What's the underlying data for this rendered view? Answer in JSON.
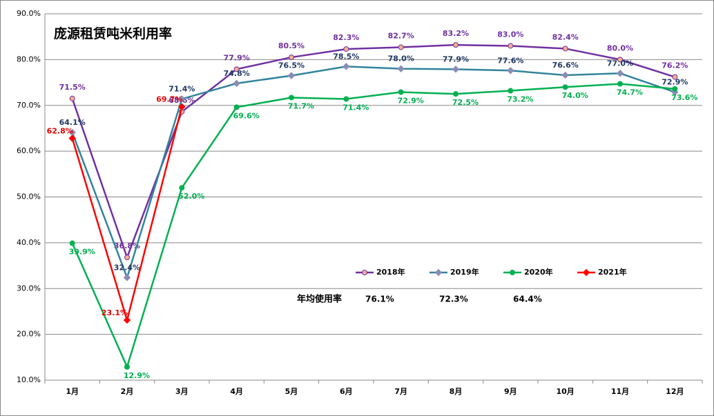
{
  "chart_data": {
    "type": "line",
    "title": "庞源租赁吨米利用率",
    "categories": [
      "1月",
      "2月",
      "3月",
      "4月",
      "5月",
      "6月",
      "7月",
      "8月",
      "9月",
      "10月",
      "11月",
      "12月"
    ],
    "series": [
      {
        "name": "2018年",
        "color": "#7030a0",
        "marker": "circle",
        "marker_color": "#f4b08c",
        "values": [
          71.5,
          36.8,
          68.6,
          77.9,
          80.5,
          82.3,
          82.7,
          83.2,
          83.0,
          82.4,
          80.0,
          76.2
        ],
        "value_labels": [
          "71.5%",
          "36.8%",
          "68.6%",
          "77.9%",
          "80.5%",
          "82.3%",
          "82.7%",
          "83.2%",
          "83.0%",
          "82.4%",
          "80.0%",
          "76.2%"
        ]
      },
      {
        "name": "2019年",
        "color": "#31849b",
        "marker": "diamond",
        "marker_color": "#8b8bb5",
        "values": [
          64.1,
          32.4,
          71.4,
          74.8,
          76.5,
          78.5,
          78.0,
          77.9,
          77.6,
          76.6,
          77.0,
          72.9
        ],
        "value_labels": [
          "64.1%",
          "32.4%",
          "71.4%",
          "74.8%",
          "76.5%",
          "78.5%",
          "78.0%",
          "77.9%",
          "77.6%",
          "76.6%",
          "77.0%",
          "72.9%"
        ]
      },
      {
        "name": "2020年",
        "color": "#00b050",
        "marker": "circle",
        "marker_color": "#00b050",
        "values": [
          39.9,
          12.9,
          52.0,
          69.6,
          71.7,
          71.4,
          72.9,
          72.5,
          73.2,
          74.0,
          74.7,
          73.6
        ],
        "value_labels": [
          "39.9%",
          "12.9%",
          "52.0%",
          "69.6%",
          "71.7%",
          "71.4%",
          "72.9%",
          "72.5%",
          "73.2%",
          "74.0%",
          "74.7%",
          "73.6%"
        ]
      },
      {
        "name": "2021年",
        "color": "#ff0000",
        "marker": "diamond",
        "marker_color": "#ff0000",
        "values": [
          62.8,
          23.1,
          69.7,
          null,
          null,
          null,
          null,
          null,
          null,
          null,
          null,
          null
        ],
        "value_labels": [
          "62.8%",
          "23.1%",
          "69.7%",
          null,
          null,
          null,
          null,
          null,
          null,
          null,
          null,
          null
        ]
      }
    ],
    "ylim": [
      10,
      90
    ],
    "yticks": [
      {
        "value": 10,
        "label": "10.0%"
      },
      {
        "value": 20,
        "label": "20.0%"
      },
      {
        "value": 30,
        "label": "30.0%"
      },
      {
        "value": 40,
        "label": "40.0%"
      },
      {
        "value": 50,
        "label": "50.0%"
      },
      {
        "value": 60,
        "label": "60.0%"
      },
      {
        "value": 70,
        "label": "70.0%"
      },
      {
        "value": 80,
        "label": "80.0%"
      },
      {
        "value": 90,
        "label": "90.0%"
      }
    ],
    "grid": true,
    "annual_average": {
      "label": "年均使用率",
      "items": [
        "76.1%",
        "72.3%",
        "64.4%"
      ]
    }
  }
}
